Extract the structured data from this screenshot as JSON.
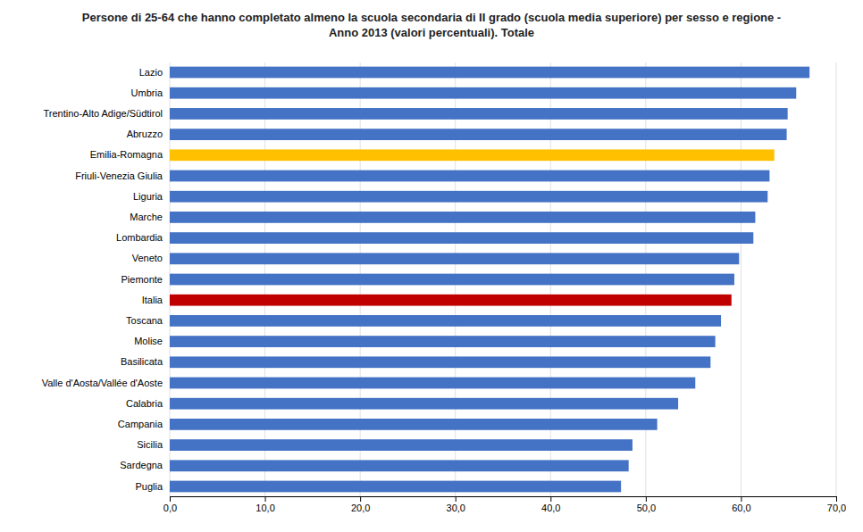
{
  "chart_data": {
    "type": "bar",
    "orientation": "horizontal",
    "title": "Persone di 25-64 che hanno completato almeno la scuola secondaria di II grado (scuola media superiore) per sesso e regione -\nAnno 2013  (valori percentuali). Totale",
    "categories": [
      "Puglia",
      "Sardegna",
      "Sicilia",
      "Campania",
      "Calabria",
      "Valle d'Aosta/Vallée d'Aoste",
      "Basilicata",
      "Molise",
      "Toscana",
      "Italia",
      "Piemonte",
      "Veneto",
      "Lombardia",
      "Marche",
      "Liguria",
      "Friuli-Venezia Giulia",
      "Emilia-Romagna",
      "Abruzzo",
      "Trentino-Alto Adige/Südtirol",
      "Umbria",
      "Lazio"
    ],
    "values": [
      47.4,
      48.2,
      48.6,
      51.2,
      53.4,
      55.2,
      56.8,
      57.3,
      57.9,
      59.0,
      59.3,
      59.8,
      61.3,
      61.5,
      62.8,
      63.0,
      63.5,
      64.8,
      64.9,
      65.8,
      67.2
    ],
    "colors": [
      "#4472C4",
      "#4472C4",
      "#4472C4",
      "#4472C4",
      "#4472C4",
      "#4472C4",
      "#4472C4",
      "#4472C4",
      "#4472C4",
      "#C00000",
      "#4472C4",
      "#4472C4",
      "#4472C4",
      "#4472C4",
      "#4472C4",
      "#4472C4",
      "#FFC000",
      "#4472C4",
      "#4472C4",
      "#4472C4",
      "#4472C4"
    ],
    "xlim": [
      0,
      70
    ],
    "xticks": [
      {
        "value": 0,
        "label": "0,0"
      },
      {
        "value": 10,
        "label": "10,0"
      },
      {
        "value": 20,
        "label": "20,0"
      },
      {
        "value": 30,
        "label": "30,0"
      },
      {
        "value": 40,
        "label": "40,0"
      },
      {
        "value": 50,
        "label": "50,0"
      },
      {
        "value": 60,
        "label": "60,0"
      },
      {
        "value": 70,
        "label": "70,0"
      }
    ],
    "grid": true
  }
}
